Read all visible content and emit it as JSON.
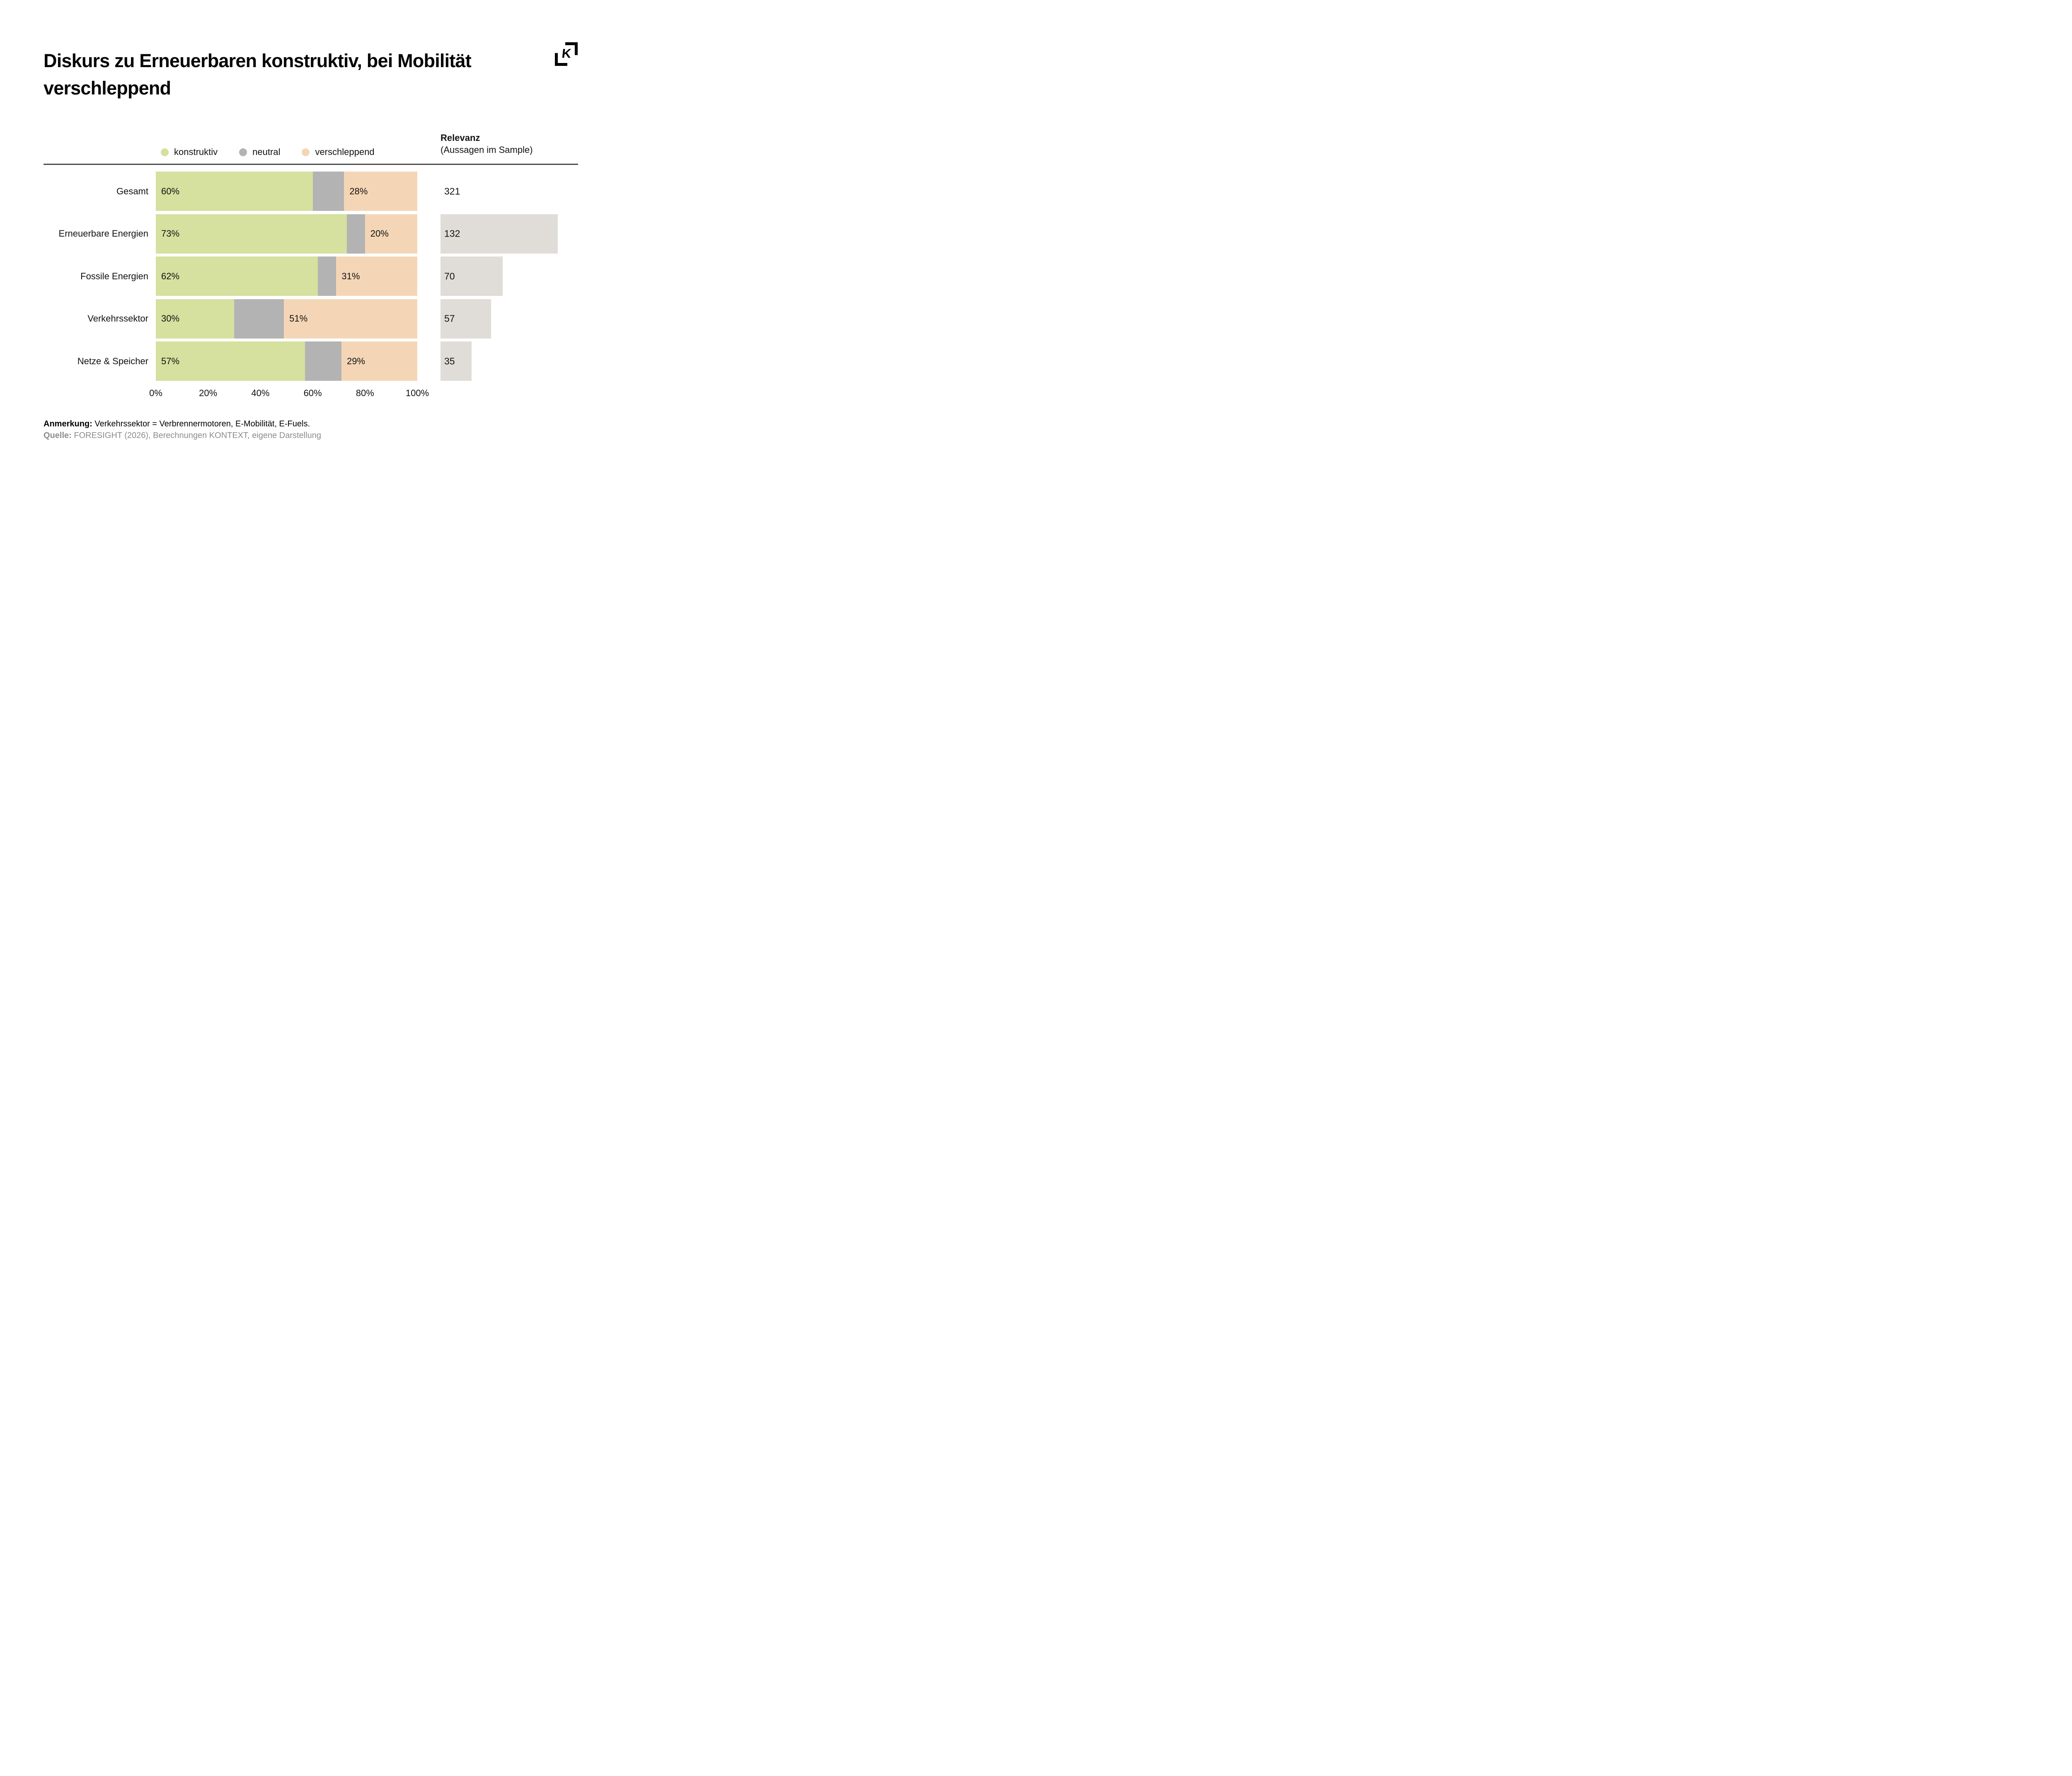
{
  "title": "Diskurs zu Erneuerbaren konstruktiv, bei Mobilität verschleppend",
  "logo": {
    "letter": "K"
  },
  "legend": {
    "items": [
      {
        "label": "konstruktiv",
        "color": "#D6E09F"
      },
      {
        "label": "neutral",
        "color": "#B3B3B3"
      },
      {
        "label": "verschleppend",
        "color": "#F4D6B6"
      }
    ]
  },
  "relevanz_header": {
    "title": "Relevanz",
    "subtitle": "(Aussagen im Sample)"
  },
  "chart_data": {
    "type": "bar",
    "orientation": "horizontal",
    "stacked": true,
    "categories": [
      "Gesamt",
      "Erneuerbare Energien",
      "Fossile Energien",
      "Verkehrssektor",
      "Netze & Speicher"
    ],
    "series": [
      {
        "name": "konstruktiv",
        "color": "#D6E09F",
        "values": [
          60,
          73,
          62,
          30,
          57
        ],
        "labeled": true
      },
      {
        "name": "neutral",
        "color": "#B3B3B3",
        "values": [
          12,
          7,
          7,
          19,
          14
        ],
        "labeled": false
      },
      {
        "name": "verschleppend",
        "color": "#F4D6B6",
        "values": [
          28,
          20,
          31,
          51,
          29
        ],
        "labeled": true
      }
    ],
    "x_ticks": [
      "0%",
      "20%",
      "40%",
      "60%",
      "80%",
      "100%"
    ],
    "xlim": [
      0,
      100
    ],
    "grid": false,
    "legend_position": "top",
    "relevanz": {
      "label": "Relevanz (Aussagen im Sample)",
      "values": [
        321,
        132,
        70,
        57,
        35
      ],
      "bar_shown": [
        false,
        true,
        true,
        true,
        true
      ],
      "bar_scale_max": 132,
      "bar_color": "#E0DDD8"
    }
  },
  "footer": {
    "note_label": "Anmerkung:",
    "note_text": " Verkehrssektor = Verbrennermotoren, E-Mobilität, E-Fuels.",
    "source_label": "Quelle:",
    "source_text": " FORESIGHT (2026), Berechnungen KONTEXT, eigene Darstellung"
  },
  "colors": {
    "konstruktiv": "#D6E09F",
    "neutral": "#B3B3B3",
    "verschleppend": "#F4D6B6",
    "relevanz_bar": "#E0DDD8",
    "separator": "#4A4A4A",
    "source_text": "#8C8C8C"
  }
}
